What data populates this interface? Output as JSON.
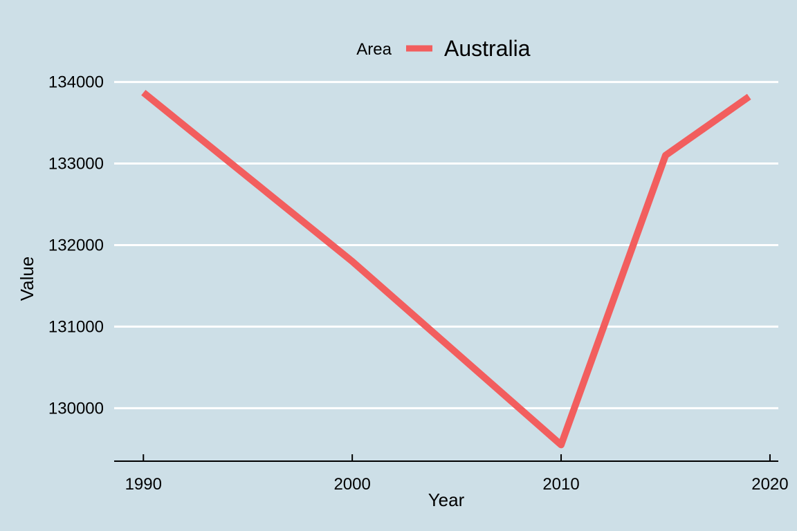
{
  "chart_data": {
    "type": "line",
    "xlabel": "Year",
    "ylabel": "Value",
    "legend": {
      "title": "Area",
      "position": "top"
    },
    "x": [
      1990,
      2000,
      2010,
      2015,
      2019
    ],
    "series": [
      {
        "name": "Australia",
        "color": "#f25e5e",
        "values": [
          133870,
          131800,
          129550,
          133100,
          133820
        ]
      }
    ],
    "xticks": [
      "1990",
      "2000",
      "2010",
      "2020"
    ],
    "yticks": [
      "130000",
      "131000",
      "132000",
      "133000",
      "134000"
    ],
    "xlim": [
      1988.6,
      2020.4
    ],
    "ylim": [
      129350,
      134200
    ],
    "grid": true
  }
}
